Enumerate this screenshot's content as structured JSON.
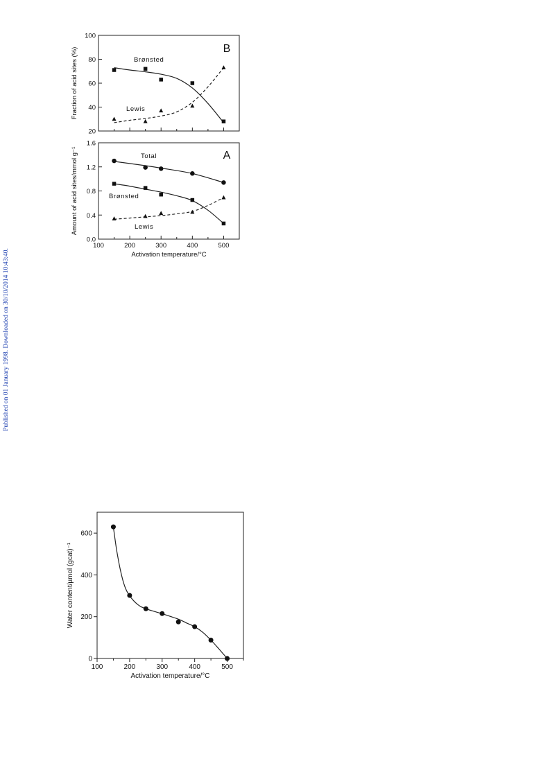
{
  "side_note": "Published on 01 January 1998. Downloaded on 30/10/2014 10:43:40.",
  "chart_data": [
    {
      "panel": "B",
      "type": "line",
      "ylabel": "Fraction of acid sites (%)",
      "xlabel": "",
      "xlim": [
        100,
        550
      ],
      "ylim": [
        20,
        100
      ],
      "yticks": [
        "20",
        "40",
        "60",
        "80",
        "100"
      ],
      "x_ticklabels_shown": false,
      "series": [
        {
          "name": "Brønsted",
          "marker": "square",
          "style": "solid",
          "x": [
            150,
            250,
            300,
            400,
            500
          ],
          "y": [
            71,
            72,
            63,
            60,
            28
          ],
          "curve": [
            [
              150,
              73
            ],
            [
              200,
              71
            ],
            [
              250,
              69.5
            ],
            [
              300,
              67.5
            ],
            [
              350,
              64
            ],
            [
              400,
              56
            ],
            [
              450,
              43
            ],
            [
              500,
              27
            ]
          ]
        },
        {
          "name": "Lewis",
          "marker": "triangle",
          "style": "dashed",
          "x": [
            150,
            250,
            300,
            400,
            500
          ],
          "y": [
            30,
            28,
            37,
            41,
            73
          ],
          "curve": [
            [
              150,
              27
            ],
            [
              200,
              29
            ],
            [
              250,
              30.5
            ],
            [
              300,
              32.5
            ],
            [
              350,
              36
            ],
            [
              400,
              44
            ],
            [
              450,
              57
            ],
            [
              500,
              73
            ]
          ]
        }
      ]
    },
    {
      "panel": "A",
      "type": "line",
      "ylabel": "Amount of acid sites/mmol g⁻¹",
      "xlabel": "Activation temperature/°C",
      "xlim": [
        100,
        550
      ],
      "ylim": [
        0.0,
        1.6
      ],
      "xticks": [
        "100",
        "200",
        "300",
        "400",
        "500"
      ],
      "yticks": [
        "0.0",
        "0.4",
        "0.8",
        "1.2",
        "1.6"
      ],
      "series": [
        {
          "name": "Total",
          "marker": "circle",
          "style": "solid",
          "x": [
            150,
            250,
            300,
            400,
            500
          ],
          "y": [
            1.3,
            1.19,
            1.17,
            1.09,
            0.94
          ],
          "curve": [
            [
              150,
              1.29
            ],
            [
              250,
              1.22
            ],
            [
              300,
              1.18
            ],
            [
              400,
              1.09
            ],
            [
              500,
              0.94
            ]
          ]
        },
        {
          "name": "Brønsted",
          "marker": "square",
          "style": "solid",
          "x": [
            150,
            250,
            300,
            400,
            500
          ],
          "y": [
            0.92,
            0.85,
            0.74,
            0.65,
            0.26
          ],
          "curve": [
            [
              150,
              0.92
            ],
            [
              200,
              0.88
            ],
            [
              250,
              0.83
            ],
            [
              300,
              0.78
            ],
            [
              350,
              0.72
            ],
            [
              400,
              0.64
            ],
            [
              450,
              0.48
            ],
            [
              500,
              0.26
            ]
          ]
        },
        {
          "name": "Lewis",
          "marker": "triangle",
          "style": "dashed",
          "x": [
            150,
            250,
            300,
            400,
            500
          ],
          "y": [
            0.34,
            0.38,
            0.43,
            0.45,
            0.69
          ],
          "curve": [
            [
              150,
              0.33
            ],
            [
              200,
              0.35
            ],
            [
              250,
              0.37
            ],
            [
              300,
              0.39
            ],
            [
              350,
              0.42
            ],
            [
              400,
              0.46
            ],
            [
              450,
              0.56
            ],
            [
              500,
              0.69
            ]
          ]
        }
      ]
    },
    {
      "panel": "",
      "type": "scatter",
      "ylabel": "Water content/µmol (gcat)⁻¹",
      "xlabel": "Activation temperature/°C",
      "xlim": [
        100,
        550
      ],
      "ylim": [
        0,
        700
      ],
      "xticks": [
        "100",
        "200",
        "300",
        "400",
        "500"
      ],
      "yticks": [
        "0",
        "200",
        "400",
        "600"
      ],
      "series": [
        {
          "name": "",
          "marker": "circle",
          "style": "solid",
          "x": [
            150,
            200,
            250,
            300,
            350,
            400,
            450,
            500
          ],
          "y": [
            630,
            302,
            238,
            215,
            175,
            152,
            88,
            0
          ],
          "curve": [
            [
              150,
              630
            ],
            [
              160,
              520
            ],
            [
              172,
              420
            ],
            [
              185,
              345
            ],
            [
              200,
              300
            ],
            [
              225,
              258
            ],
            [
              250,
              238
            ],
            [
              300,
              214
            ],
            [
              350,
              188
            ],
            [
              375,
              170
            ],
            [
              400,
              152
            ],
            [
              425,
              125
            ],
            [
              450,
              88
            ],
            [
              475,
              45
            ],
            [
              500,
              0
            ]
          ]
        }
      ]
    }
  ]
}
